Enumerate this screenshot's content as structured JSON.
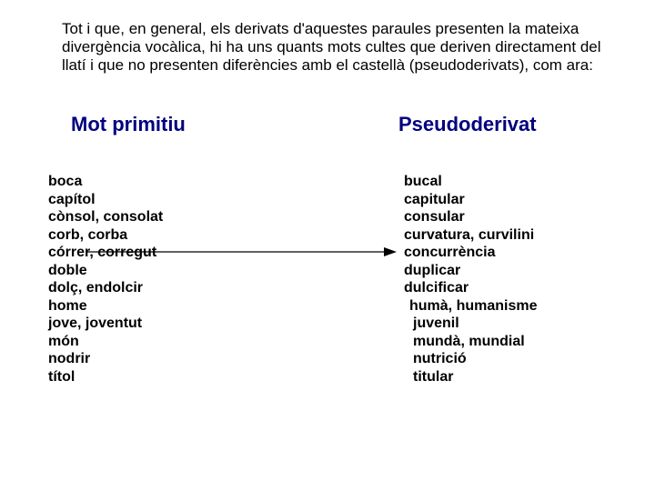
{
  "colors": {
    "heading": "#000080",
    "text": "#000000",
    "arrow": "#000000",
    "background": "#ffffff"
  },
  "intro": "Tot i que, en general, els derivats d'aquestes paraules presenten la mateixa divergència vocàlica, hi ha uns quants mots cultes que deriven directament del llatí i que no presenten diferències amb el castellà (pseudoderivats), com ara:",
  "left": {
    "header": "Mot primitiu",
    "items": [
      "boca",
      "capítol",
      "cònsol, consolat",
      "corb, corba",
      "córrer, corregut",
      "doble",
      "dolç, endolcir",
      "home",
      "jove, joventut",
      "món",
      "nodrir",
      "títol"
    ]
  },
  "right": {
    "header": "Pseudoderivat",
    "items": [
      {
        "text": "bucal",
        "indent": 0
      },
      {
        "text": "capitular",
        "indent": 0
      },
      {
        "text": "consular",
        "indent": 0
      },
      {
        "text": "curvatura, curvilini",
        "indent": 0
      },
      {
        "text": "concurrència",
        "indent": 0
      },
      {
        "text": "duplicar",
        "indent": 0
      },
      {
        "text": "dulcificar",
        "indent": 0
      },
      {
        "text": "humà, humanisme",
        "indent": 1
      },
      {
        "text": "juvenil",
        "indent": 2
      },
      {
        "text": "mundà, mundial",
        "indent": 2
      },
      {
        "text": "nutrició",
        "indent": 2
      },
      {
        "text": "titular",
        "indent": 2
      }
    ]
  }
}
